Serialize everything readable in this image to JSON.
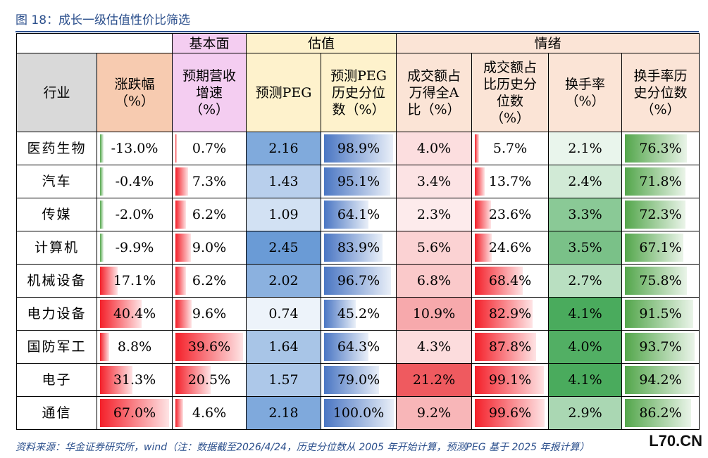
{
  "title": "图 18：成长一级估值性价比筛选",
  "groups": [
    {
      "label": "",
      "span": 2
    },
    {
      "label": "基本面",
      "span": 1
    },
    {
      "label": "估值",
      "span": 2
    },
    {
      "label": "情绪",
      "span": 4
    }
  ],
  "headers": {
    "industry": "行业",
    "chg": "涨跌幅\n（%）",
    "growth": "预期营收\n增速\n（%）",
    "peg": "预测PEG",
    "peg_pct": "预测PEG\n历史分位\n数（%）",
    "turnover_share": "成交额占\n万得全A\n比（%）",
    "turnover_pct": "成交额占\n比历史分\n位数\n（%）",
    "turn_rate": "换手率\n（%）",
    "turn_rate_pct": "换手率历\n史分位数\n（%）"
  },
  "colors": {
    "red_bar": "#f4202a",
    "green_bar": "#53a64b",
    "blue_bar": "#4a76c3",
    "peg_scale": "#6a9bd6",
    "red_scale": "#ef5a5f",
    "green_scale": "#4aab5d"
  },
  "rows": [
    {
      "industry": "医药生物",
      "chg": "-13.0%",
      "chg_v": -13.0,
      "growth": "0.7%",
      "growth_v": 0.7,
      "peg": "2.16",
      "peg_v": 2.16,
      "peg_pct": "98.9%",
      "peg_pct_v": 98.9,
      "ts": "4.0%",
      "ts_v": 4.0,
      "tp": "5.7%",
      "tp_v": 5.7,
      "tr": "2.1%",
      "tr_v": 2.1,
      "trp": "76.3%",
      "trp_v": 76.3
    },
    {
      "industry": "汽车",
      "chg": "-0.4%",
      "chg_v": -0.4,
      "growth": "7.3%",
      "growth_v": 7.3,
      "peg": "1.43",
      "peg_v": 1.43,
      "peg_pct": "95.1%",
      "peg_pct_v": 95.1,
      "ts": "3.4%",
      "ts_v": 3.4,
      "tp": "13.7%",
      "tp_v": 13.7,
      "tr": "2.4%",
      "tr_v": 2.4,
      "trp": "71.8%",
      "trp_v": 71.8
    },
    {
      "industry": "传媒",
      "chg": "-2.0%",
      "chg_v": -2.0,
      "growth": "6.2%",
      "growth_v": 6.2,
      "peg": "1.09",
      "peg_v": 1.09,
      "peg_pct": "64.1%",
      "peg_pct_v": 64.1,
      "ts": "2.3%",
      "ts_v": 2.3,
      "tp": "23.6%",
      "tp_v": 23.6,
      "tr": "3.3%",
      "tr_v": 3.3,
      "trp": "72.3%",
      "trp_v": 72.3
    },
    {
      "industry": "计算机",
      "chg": "-9.9%",
      "chg_v": -9.9,
      "growth": "9.0%",
      "growth_v": 9.0,
      "peg": "2.45",
      "peg_v": 2.45,
      "peg_pct": "83.9%",
      "peg_pct_v": 83.9,
      "ts": "5.6%",
      "ts_v": 5.6,
      "tp": "24.6%",
      "tp_v": 24.6,
      "tr": "3.5%",
      "tr_v": 3.5,
      "trp": "67.1%",
      "trp_v": 67.1
    },
    {
      "industry": "机械设备",
      "chg": "17.1%",
      "chg_v": 17.1,
      "growth": "6.2%",
      "growth_v": 6.2,
      "peg": "2.02",
      "peg_v": 2.02,
      "peg_pct": "96.7%",
      "peg_pct_v": 96.7,
      "ts": "6.8%",
      "ts_v": 6.8,
      "tp": "68.4%",
      "tp_v": 68.4,
      "tr": "2.7%",
      "tr_v": 2.7,
      "trp": "75.8%",
      "trp_v": 75.8
    },
    {
      "industry": "电力设备",
      "chg": "40.4%",
      "chg_v": 40.4,
      "growth": "9.6%",
      "growth_v": 9.6,
      "peg": "0.74",
      "peg_v": 0.74,
      "peg_pct": "45.2%",
      "peg_pct_v": 45.2,
      "ts": "10.9%",
      "ts_v": 10.9,
      "tp": "82.9%",
      "tp_v": 82.9,
      "tr": "4.1%",
      "tr_v": 4.1,
      "trp": "91.5%",
      "trp_v": 91.5
    },
    {
      "industry": "国防军工",
      "chg": "8.8%",
      "chg_v": 8.8,
      "growth": "39.6%",
      "growth_v": 39.6,
      "peg": "1.64",
      "peg_v": 1.64,
      "peg_pct": "64.3%",
      "peg_pct_v": 64.3,
      "ts": "4.3%",
      "ts_v": 4.3,
      "tp": "87.8%",
      "tp_v": 87.8,
      "tr": "4.0%",
      "tr_v": 4.0,
      "trp": "93.7%",
      "trp_v": 93.7
    },
    {
      "industry": "电子",
      "chg": "31.3%",
      "chg_v": 31.3,
      "growth": "20.5%",
      "growth_v": 20.5,
      "peg": "1.57",
      "peg_v": 1.57,
      "peg_pct": "79.0%",
      "peg_pct_v": 79.0,
      "ts": "21.2%",
      "ts_v": 21.2,
      "tp": "99.1%",
      "tp_v": 99.1,
      "tr": "4.1%",
      "tr_v": 4.1,
      "trp": "94.2%",
      "trp_v": 94.2
    },
    {
      "industry": "通信",
      "chg": "67.0%",
      "chg_v": 67.0,
      "growth": "4.6%",
      "growth_v": 4.6,
      "peg": "2.18",
      "peg_v": 2.18,
      "peg_pct": "100.0%",
      "peg_pct_v": 100.0,
      "ts": "9.2%",
      "ts_v": 9.2,
      "tp": "99.6%",
      "tp_v": 99.6,
      "tr": "2.9%",
      "tr_v": 2.9,
      "trp": "86.2%",
      "trp_v": 86.2
    }
  ],
  "source": "资料来源：华金证券研究所，wind（注：数据截至2026/4/24，历史分位数从 2005 年开始计算，预测PEG 基于 2025 年报计算）",
  "watermark": "L70.CN"
}
